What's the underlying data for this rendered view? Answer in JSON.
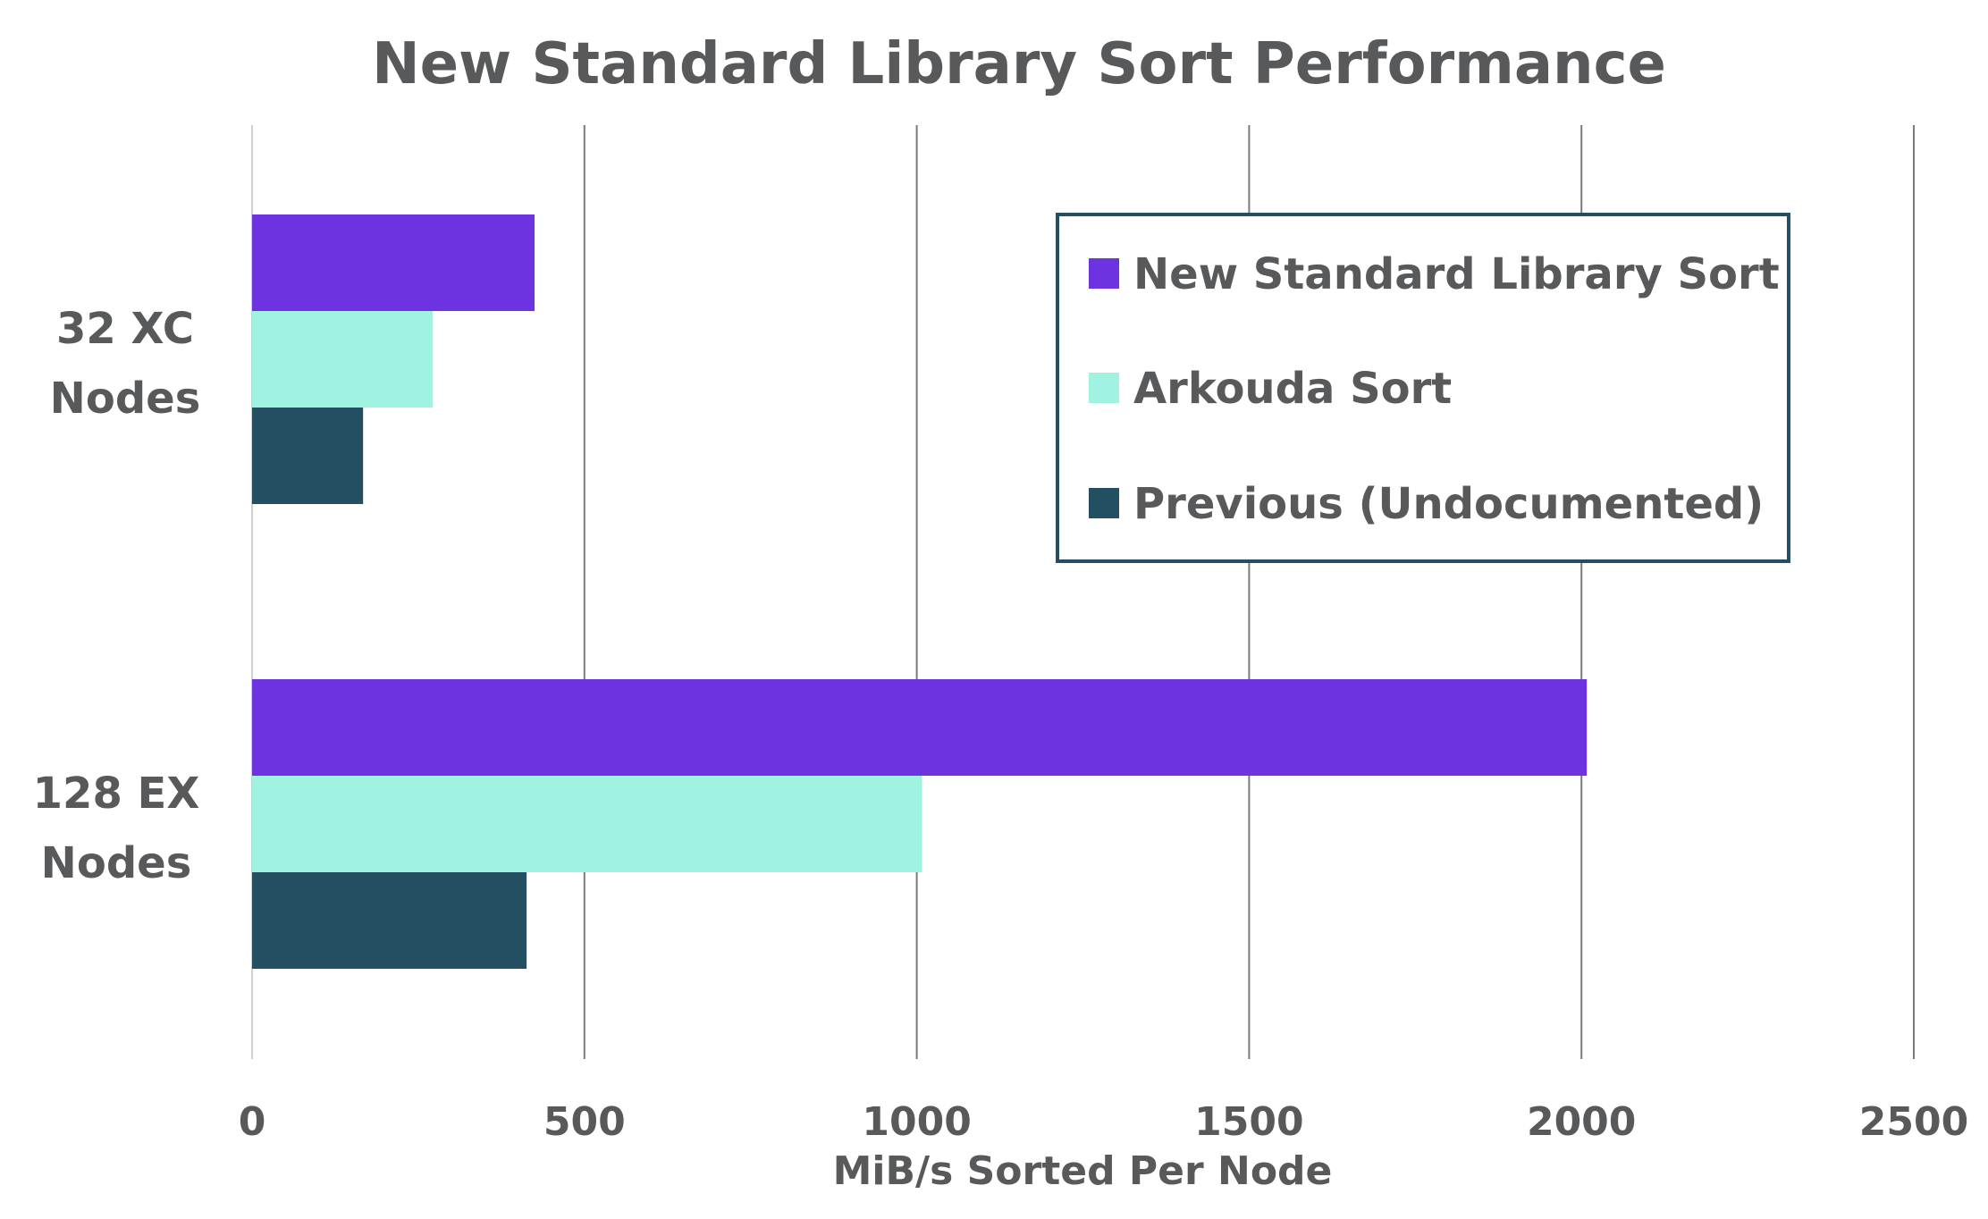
{
  "chart_data": {
    "type": "bar",
    "orientation": "horizontal",
    "title": "New Standard Library Sort Performance",
    "xlabel": "MiB/s Sorted Per Node",
    "ylabel": "",
    "xlim": [
      0,
      2500
    ],
    "xticks": [
      "0",
      "500",
      "1000",
      "1500",
      "2000",
      "2500"
    ],
    "categories": [
      [
        "32 XC",
        "Nodes"
      ],
      [
        "128 EX",
        "Nodes"
      ]
    ],
    "series": [
      {
        "name": "New Standard Library Sort",
        "color": "#6e33e1",
        "values": [
          425,
          2008
        ]
      },
      {
        "name": "Arkouda Sort",
        "color": "#a0f3e0",
        "values": [
          272,
          1008
        ]
      },
      {
        "name": "Previous (Undocumented)",
        "color": "#244f62",
        "values": [
          167,
          413
        ]
      }
    ],
    "grid": "vertical",
    "legend_position": "top-right",
    "colors": {
      "text": "#58595b",
      "grid": "#7b7b7b",
      "legend_border": "#244f62"
    }
  }
}
